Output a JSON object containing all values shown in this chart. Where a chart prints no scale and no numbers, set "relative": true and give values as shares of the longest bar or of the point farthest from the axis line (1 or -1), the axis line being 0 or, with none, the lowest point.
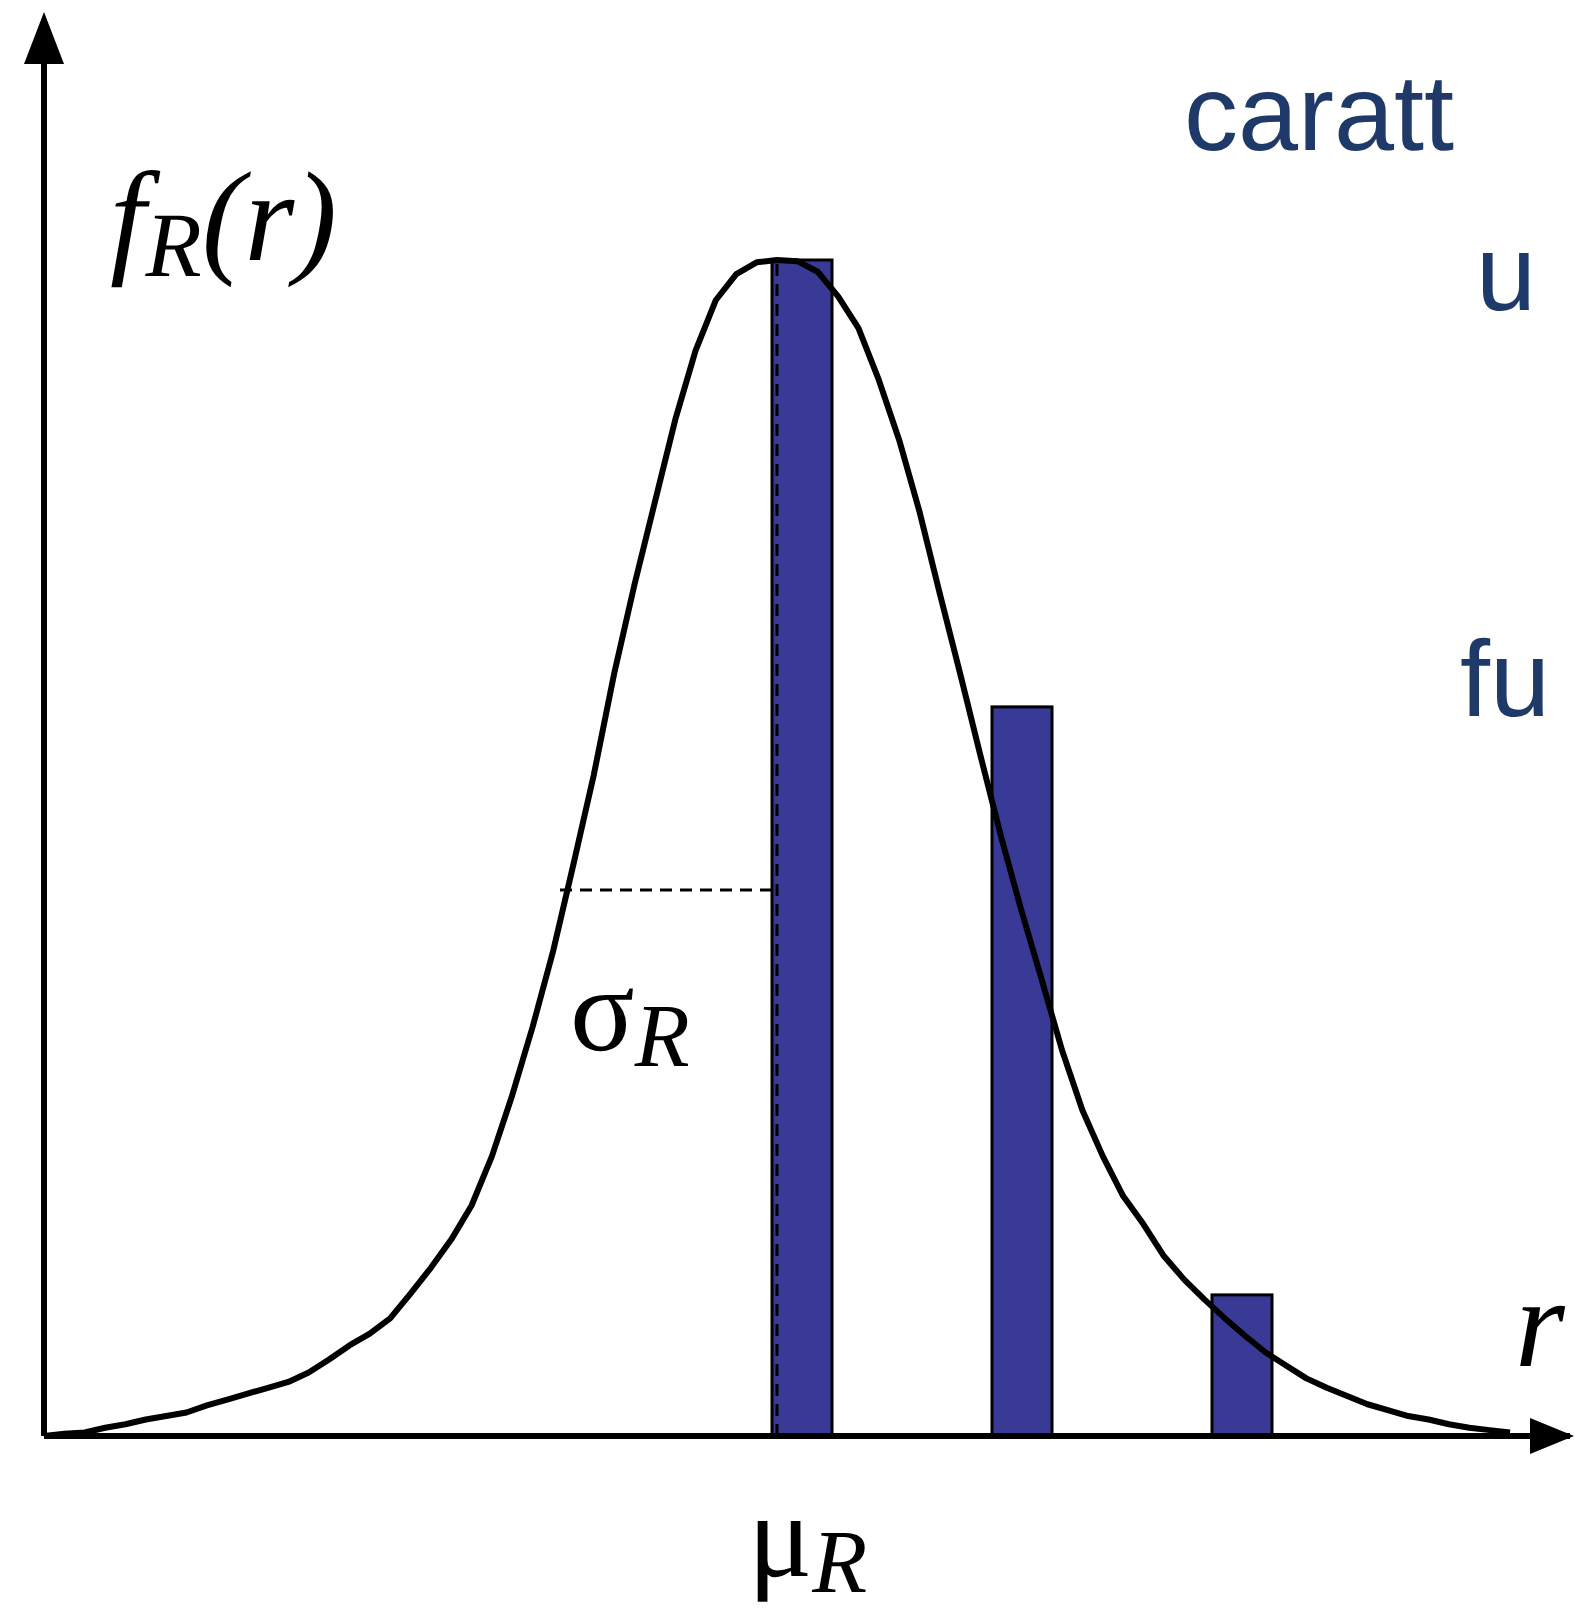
{
  "chart_data": [
    {
      "type": "line",
      "relative": true,
      "xlabel": "r",
      "ylabel": "f$_{R}$(r)",
      "annotations": [
        "σ$_{R}$",
        "caratt",
        "u",
        "fu",
        "μ$_{R}$"
      ],
      "categories": [
        null,
        null,
        null,
        null,
        null,
        null,
        null,
        null,
        null,
        null,
        null,
        null,
        null,
        null,
        null,
        null,
        null,
        null,
        null,
        null,
        null,
        null,
        null,
        null,
        null,
        null,
        null,
        null,
        null,
        null,
        null,
        null,
        null,
        null,
        null,
        null,
        null,
        null,
        null,
        null,
        null,
        null,
        null,
        null,
        null,
        null,
        null,
        null,
        null,
        null,
        null,
        null,
        null,
        null,
        null,
        null,
        null,
        null,
        null,
        null,
        null,
        null,
        null,
        null,
        null,
        null,
        null,
        null,
        null,
        null,
        null,
        null,
        null
      ],
      "series": [
        {
          "type": "line",
          "color": "#000000",
          "values": [
            0,
            0.002,
            0.003,
            0.007,
            0.01,
            0.014,
            0.017,
            0.02,
            0.026,
            0.031,
            0.036,
            0.041,
            0.046,
            0.054,
            0.065,
            0.077,
            0.087,
            0.1,
            0.121,
            0.143,
            0.167,
            0.196,
            0.238,
            0.29,
            0.348,
            0.412,
            0.486,
            0.562,
            0.648,
            0.724,
            0.794,
            0.864,
            0.923,
            0.966,
            0.988,
            0.998,
            1,
            0.999,
            0.99,
            0.969,
            0.942,
            0.898,
            0.847,
            0.786,
            0.716,
            0.648,
            0.578,
            0.51,
            0.447,
            0.388,
            0.328,
            0.277,
            0.238,
            0.204,
            0.18,
            0.153,
            0.133,
            0.116,
            0.1,
            0.085,
            0.071,
            0.06,
            0.049,
            0.041,
            0.034,
            0.027,
            0.022,
            0.017,
            0.014,
            0.01,
            0.007,
            0.005,
            0.003
          ]
        }
      ]
    },
    {
      "type": "bar",
      "relative": true,
      "categories": [
        null,
        null,
        null
      ],
      "values": [
        1,
        0.62,
        0.12
      ],
      "color": "#383a96"
    }
  ]
}
